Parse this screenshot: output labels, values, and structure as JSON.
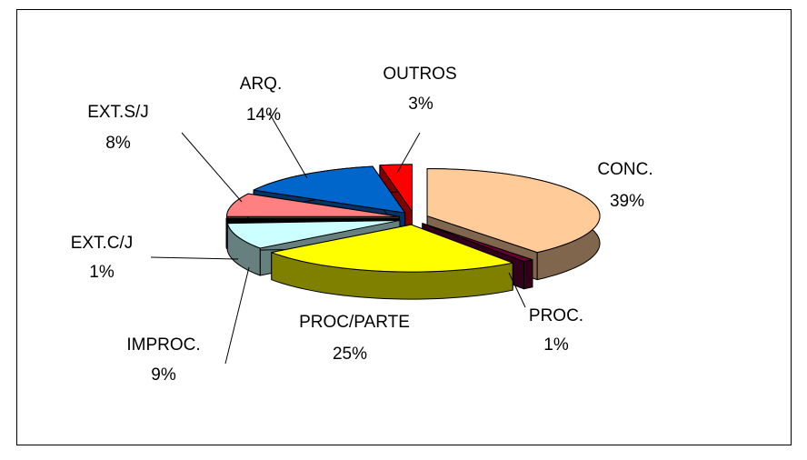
{
  "chart_data": {
    "type": "pie3d",
    "categories": [
      "CONC.",
      "PROC.",
      "PROC/PARTE",
      "IMPROC.",
      "EXT.C/J",
      "EXT.S/J",
      "ARQ.",
      "OUTROS"
    ],
    "values": [
      39,
      1,
      25,
      9,
      1,
      8,
      14,
      3
    ],
    "value_labels": [
      "39%",
      "1%",
      "25%",
      "9%",
      "1%",
      "8%",
      "14%",
      "3%"
    ],
    "colors": [
      "#FFCC99",
      "#660033",
      "#FFFF00",
      "#CCFFFF",
      "#000000",
      "#FF8080",
      "#0066CC",
      "#FF0000"
    ]
  }
}
